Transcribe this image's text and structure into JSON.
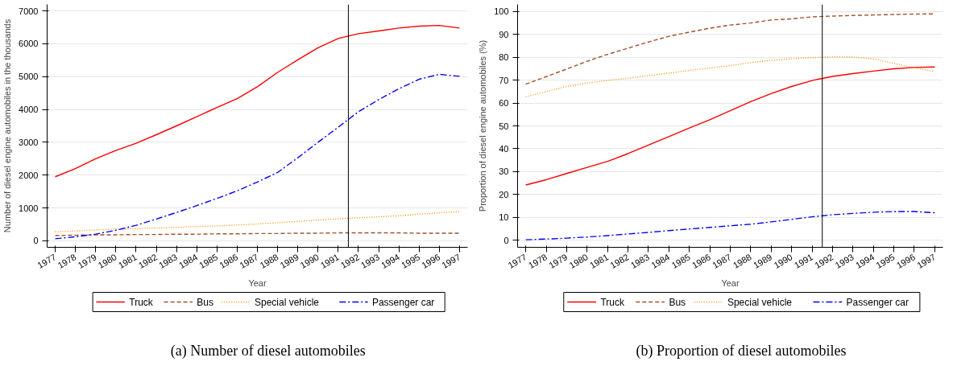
{
  "chart_data": [
    {
      "type": "line",
      "title": "(a) Number of diesel automobiles",
      "xlabel": "Year",
      "ylabel": "Number of diesel engine automobiles in the thousands",
      "x": [
        1977,
        1978,
        1979,
        1980,
        1981,
        1982,
        1983,
        1984,
        1985,
        1986,
        1987,
        1988,
        1989,
        1990,
        1991,
        1992,
        1993,
        1994,
        1995,
        1996,
        1997
      ],
      "series": [
        {
          "name": "Truck",
          "color": "#ff0000",
          "line_style": "solid",
          "values": [
            1950,
            2200,
            2500,
            2750,
            2970,
            3230,
            3500,
            3780,
            4060,
            4330,
            4690,
            5130,
            5510,
            5880,
            6160,
            6310,
            6390,
            6480,
            6540,
            6560,
            6480
          ]
        },
        {
          "name": "Bus",
          "color": "#a0522d",
          "line_style": "dashed",
          "values": [
            160,
            170,
            180,
            180,
            190,
            190,
            200,
            200,
            210,
            210,
            220,
            220,
            230,
            230,
            240,
            240,
            240,
            240,
            230,
            230,
            230
          ]
        },
        {
          "name": "Special vehicle",
          "color": "#ff8c00",
          "line_style": "dotted",
          "values": [
            270,
            300,
            330,
            350,
            370,
            390,
            410,
            430,
            450,
            480,
            510,
            550,
            590,
            630,
            670,
            700,
            730,
            760,
            810,
            850,
            890
          ]
        },
        {
          "name": "Passenger car",
          "color": "#0000ff",
          "line_style": "dashdot",
          "values": [
            60,
            120,
            200,
            320,
            470,
            660,
            860,
            1070,
            1290,
            1520,
            1790,
            2080,
            2530,
            3000,
            3460,
            3930,
            4300,
            4630,
            4920,
            5070,
            5010
          ]
        }
      ],
      "xlim": [
        1976.6,
        1997.4
      ],
      "ylim": [
        -200,
        7200
      ],
      "xticks": [
        1977,
        1978,
        1979,
        1980,
        1981,
        1982,
        1983,
        1984,
        1985,
        1986,
        1987,
        1988,
        1989,
        1990,
        1991,
        1992,
        1993,
        1994,
        1995,
        1996,
        1997
      ],
      "yticks": [
        0,
        1000,
        2000,
        3000,
        4000,
        5000,
        6000,
        7000
      ],
      "ref_lines": [
        {
          "axis": "x",
          "value": 1991.5,
          "color": "#000000"
        }
      ],
      "grid": "y",
      "legend": "bottom",
      "marker": "none"
    },
    {
      "type": "line",
      "title": "(b) Proportion of diesel automobiles",
      "xlabel": "Year",
      "ylabel": "Proportion of diesel engine automobiles (%)",
      "x": [
        1977,
        1978,
        1979,
        1980,
        1981,
        1982,
        1983,
        1984,
        1985,
        1986,
        1987,
        1988,
        1989,
        1990,
        1991,
        1992,
        1993,
        1994,
        1995,
        1996,
        1997
      ],
      "series": [
        {
          "name": "Truck",
          "color": "#ff0000",
          "line_style": "solid",
          "values": [
            24.2,
            26.5,
            29.2,
            31.9,
            34.5,
            37.9,
            41.6,
            45.3,
            49.1,
            52.7,
            56.6,
            60.6,
            64.1,
            67.2,
            69.8,
            71.6,
            72.8,
            73.9,
            74.9,
            75.5,
            75.7
          ]
        },
        {
          "name": "Bus",
          "color": "#a0522d",
          "line_style": "dashed",
          "values": [
            68.2,
            71.5,
            74.8,
            78.2,
            81.2,
            83.9,
            86.6,
            89.1,
            90.9,
            92.6,
            94.0,
            94.9,
            96.2,
            96.7,
            97.6,
            97.9,
            98.2,
            98.4,
            98.6,
            98.8,
            98.9
          ]
        },
        {
          "name": "Special vehicle",
          "color": "#ff8c00",
          "line_style": "dotted",
          "values": [
            62.7,
            65.0,
            67.2,
            68.7,
            69.8,
            70.8,
            71.9,
            73.0,
            74.2,
            75.2,
            76.3,
            77.6,
            78.6,
            79.3,
            79.8,
            80.1,
            80.1,
            79.2,
            77.3,
            75.3,
            73.7
          ]
        },
        {
          "name": "Passenger car",
          "color": "#0000ff",
          "line_style": "dashdot",
          "values": [
            0.3,
            0.6,
            1.0,
            1.5,
            2.1,
            2.8,
            3.5,
            4.3,
            5.0,
            5.7,
            6.4,
            7.1,
            8.1,
            9.2,
            10.3,
            11.2,
            11.8,
            12.3,
            12.6,
            12.6,
            12.1
          ]
        }
      ],
      "xlim": [
        1976.6,
        1997.4
      ],
      "ylim": [
        -3,
        103
      ],
      "xticks": [
        1977,
        1978,
        1979,
        1980,
        1981,
        1982,
        1983,
        1984,
        1985,
        1986,
        1987,
        1988,
        1989,
        1990,
        1991,
        1992,
        1993,
        1994,
        1995,
        1996,
        1997
      ],
      "yticks": [
        0,
        10,
        20,
        30,
        40,
        50,
        60,
        70,
        80,
        90,
        100
      ],
      "ref_lines": [
        {
          "axis": "x",
          "value": 1991.5,
          "color": "#000000"
        }
      ],
      "grid": "y",
      "legend": "bottom",
      "marker": "none"
    }
  ]
}
